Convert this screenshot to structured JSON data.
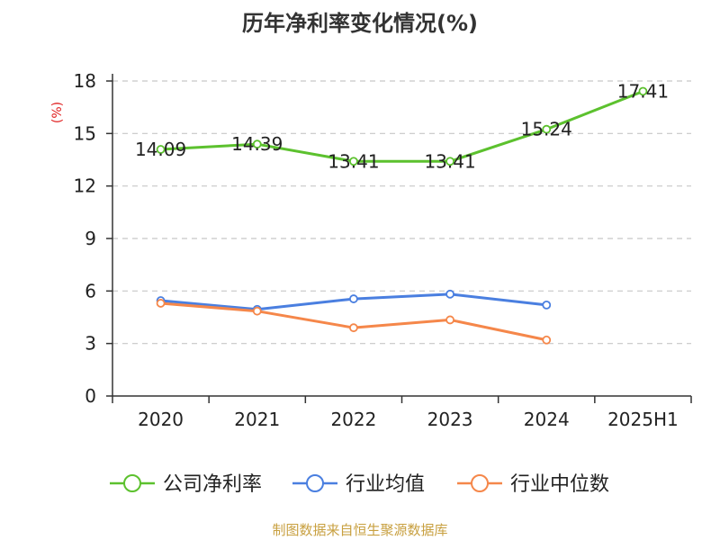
{
  "chart_data": {
    "type": "line",
    "title": "历年净利率变化情况(%)",
    "ylabel": "(%)",
    "xlabel": "",
    "categories": [
      "2020",
      "2021",
      "2022",
      "2023",
      "2024",
      "2025H1"
    ],
    "ylim": [
      0,
      18
    ],
    "yticks": [
      0,
      3,
      6,
      9,
      12,
      15,
      18
    ],
    "grid": true,
    "legend_position": "bottom",
    "series": [
      {
        "name": "公司净利率",
        "color": "#5cc12e",
        "values": [
          14.09,
          14.39,
          13.41,
          13.41,
          15.24,
          17.41
        ],
        "labels": [
          "14.09",
          "14.39",
          "13.41",
          "13.41",
          "15.24",
          "17.41"
        ]
      },
      {
        "name": "行业均值",
        "color": "#4a7fe0",
        "values": [
          5.45,
          4.95,
          5.55,
          5.82,
          5.2,
          null
        ]
      },
      {
        "name": "行业中位数",
        "color": "#f5874a",
        "values": [
          5.3,
          4.85,
          3.9,
          4.35,
          3.2,
          null
        ]
      }
    ]
  },
  "source": "制图数据来自恒生聚源数据库"
}
